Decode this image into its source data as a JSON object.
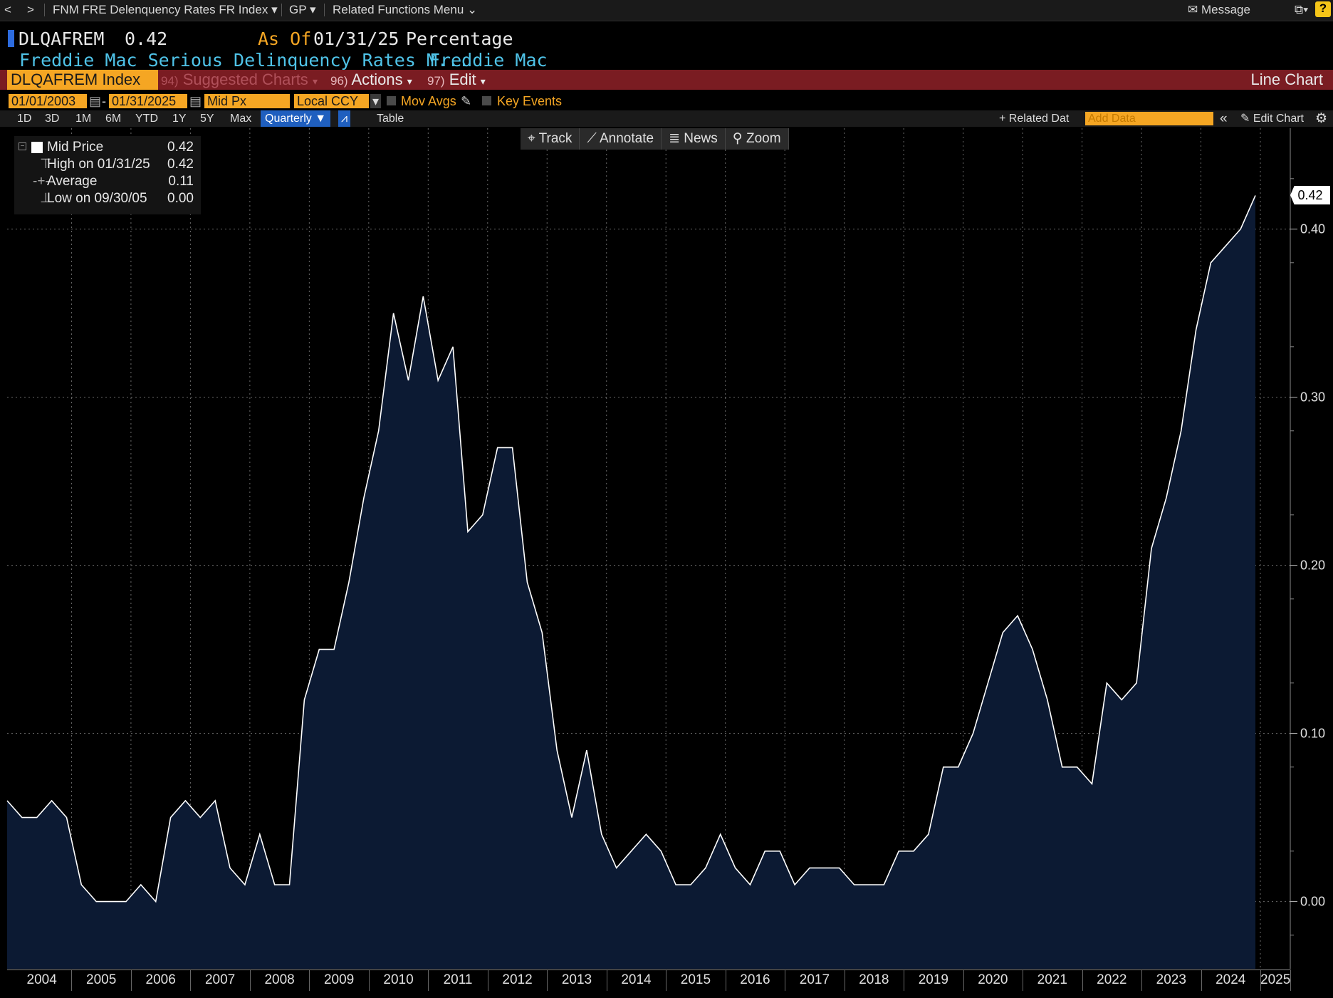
{
  "navbar": {
    "back": "<",
    "forward": ">",
    "security": "FNM FRE Delenquency Rates FR Index",
    "gp": "GP",
    "related": "Related Functions Menu",
    "message": "Message"
  },
  "header": {
    "ticker": "DLQAFREM",
    "last_value": "0.42",
    "as_of_label": "As Of",
    "as_of_date": "01/31/25",
    "units": "Percentage",
    "description": "Freddie Mac Serious Delinquency Rates M...",
    "source": "Freddie Mac"
  },
  "redbar": {
    "security_field": "DLQAFREM Index",
    "suggested": "Suggested Charts",
    "suggested_num": "94)",
    "actions_num": "96)",
    "actions": "Actions",
    "edit_num": "97)",
    "edit": "Edit",
    "chart_type": "Line Chart"
  },
  "controls": {
    "start_date": "01/01/2003",
    "end_date": "01/31/2025",
    "price_field": "Mid Px",
    "currency": "Local CCY",
    "mov_avgs": "Mov Avgs",
    "key_events": "Key Events"
  },
  "periods": [
    "1D",
    "3D",
    "1M",
    "6M",
    "YTD",
    "1Y",
    "5Y",
    "Max"
  ],
  "frequency": "Quarterly",
  "table_label": "Table",
  "related_data": "Related Dat",
  "add_data_placeholder": "Add Data",
  "edit_chart": "Edit Chart",
  "chart_tools": {
    "track": "Track",
    "annotate": "Annotate",
    "news": "News",
    "zoom": "Zoom"
  },
  "legend": {
    "series": "Mid Price",
    "series_value": "0.42",
    "high_label": "High on 01/31/25",
    "high_value": "0.42",
    "avg_label": "Average",
    "avg_value": "0.11",
    "low_label": "Low on 09/30/05",
    "low_value": "0.00"
  },
  "last_price_tag": "0.42",
  "colors": {
    "background": "#000000",
    "area_fill": "#0c1a33",
    "line": "#ffffff",
    "accent_orange": "#f5a623",
    "redbar": "#7a1c22",
    "cyan_text": "#4fc3e8",
    "grid": "#6a6a6a"
  },
  "chart_data": {
    "type": "area",
    "series": [
      {
        "name": "Mid Price",
        "values": [
          0.06,
          0.05,
          0.05,
          0.06,
          0.05,
          0.01,
          0.0,
          0.0,
          0.0,
          0.01,
          0.0,
          0.05,
          0.06,
          0.05,
          0.06,
          0.02,
          0.01,
          0.04,
          0.01,
          0.01,
          0.12,
          0.15,
          0.15,
          0.19,
          0.24,
          0.28,
          0.35,
          0.31,
          0.36,
          0.31,
          0.33,
          0.22,
          0.23,
          0.27,
          0.27,
          0.19,
          0.16,
          0.09,
          0.05,
          0.09,
          0.04,
          0.02,
          0.03,
          0.04,
          0.03,
          0.01,
          0.01,
          0.02,
          0.04,
          0.02,
          0.01,
          0.03,
          0.03,
          0.01,
          0.02,
          0.02,
          0.02,
          0.01,
          0.01,
          0.01,
          0.03,
          0.03,
          0.04,
          0.08,
          0.08,
          0.1,
          0.13,
          0.16,
          0.17,
          0.15,
          0.12,
          0.08,
          0.08,
          0.07,
          0.13,
          0.12,
          0.13,
          0.21,
          0.24,
          0.28,
          0.34,
          0.38,
          0.39,
          0.4,
          0.42
        ]
      }
    ],
    "x_start": "2003-12",
    "x_end": "2025-01",
    "frequency": "quarterly",
    "x_tick_labels": [
      "2004",
      "2005",
      "2006",
      "2007",
      "2008",
      "2009",
      "2010",
      "2011",
      "2012",
      "2013",
      "2014",
      "2015",
      "2016",
      "2017",
      "2018",
      "2019",
      "2020",
      "2021",
      "2022",
      "2023",
      "2024",
      "2025"
    ],
    "y_ticks": [
      "0.00",
      "0.10",
      "0.20",
      "0.30",
      "0.40"
    ],
    "ylim": [
      -0.04,
      0.46
    ],
    "grid": true,
    "legend_position": "top-left"
  }
}
